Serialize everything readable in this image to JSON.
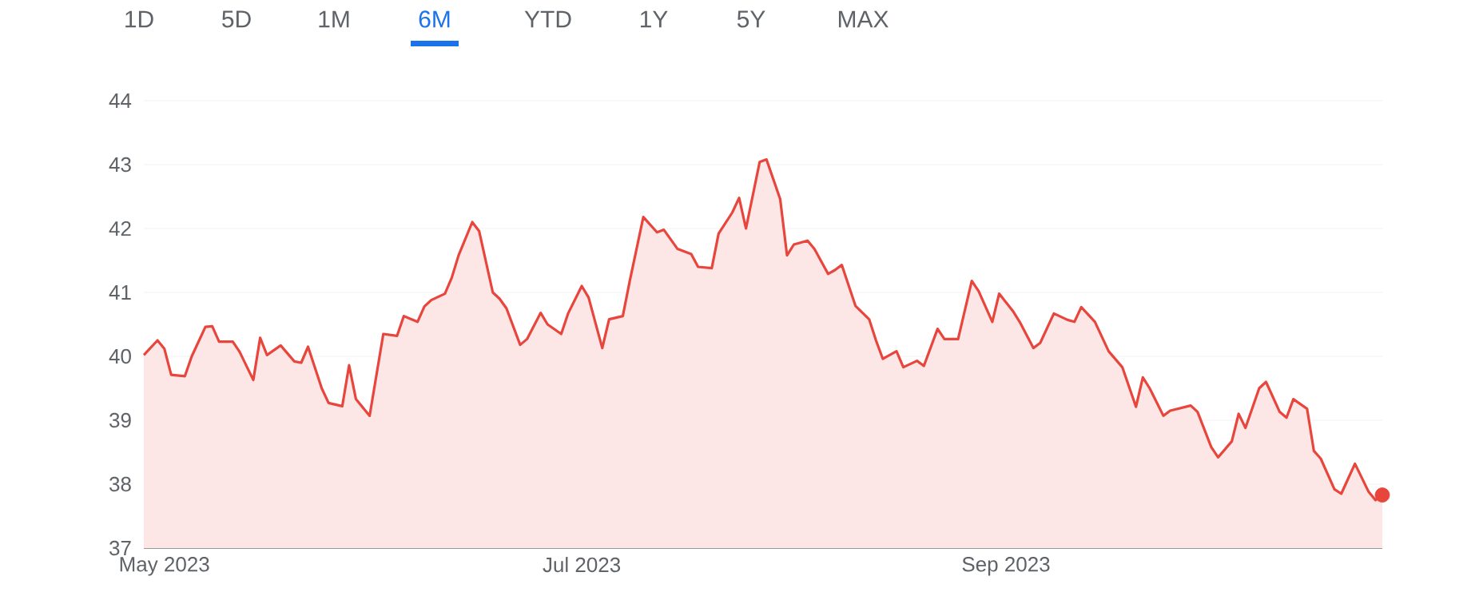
{
  "chart_data": {
    "type": "area",
    "color": "#e8453c",
    "x": [
      "2023-04-28",
      "2023-04-30",
      "2023-05-01",
      "2023-05-02",
      "2023-05-04",
      "2023-05-05",
      "2023-05-07",
      "2023-05-08",
      "2023-05-09",
      "2023-05-11",
      "2023-05-12",
      "2023-05-14",
      "2023-05-15",
      "2023-05-16",
      "2023-05-18",
      "2023-05-20",
      "2023-05-21",
      "2023-05-22",
      "2023-05-24",
      "2023-05-25",
      "2023-05-27",
      "2023-05-28",
      "2023-05-29",
      "2023-05-31",
      "2023-06-02",
      "2023-06-04",
      "2023-06-05",
      "2023-06-07",
      "2023-06-08",
      "2023-06-09",
      "2023-06-11",
      "2023-06-12",
      "2023-06-13",
      "2023-06-15",
      "2023-06-16",
      "2023-06-18",
      "2023-06-19",
      "2023-06-20",
      "2023-06-22",
      "2023-06-23",
      "2023-06-25",
      "2023-06-26",
      "2023-06-28",
      "2023-06-29",
      "2023-07-01",
      "2023-07-02",
      "2023-07-04",
      "2023-07-05",
      "2023-07-07",
      "2023-07-08",
      "2023-07-10",
      "2023-07-12",
      "2023-07-13",
      "2023-07-15",
      "2023-07-17",
      "2023-07-18",
      "2023-07-20",
      "2023-07-21",
      "2023-07-23",
      "2023-07-24",
      "2023-07-25",
      "2023-07-27",
      "2023-07-28",
      "2023-07-30",
      "2023-07-31",
      "2023-08-01",
      "2023-08-03",
      "2023-08-04",
      "2023-08-06",
      "2023-08-07",
      "2023-08-08",
      "2023-08-10",
      "2023-08-12",
      "2023-08-13",
      "2023-08-14",
      "2023-08-16",
      "2023-08-17",
      "2023-08-19",
      "2023-08-20",
      "2023-08-22",
      "2023-08-23",
      "2023-08-25",
      "2023-08-27",
      "2023-08-28",
      "2023-08-30",
      "2023-08-31",
      "2023-09-02",
      "2023-09-03",
      "2023-09-05",
      "2023-09-06",
      "2023-09-08",
      "2023-09-10",
      "2023-09-11",
      "2023-09-12",
      "2023-09-14",
      "2023-09-16",
      "2023-09-18",
      "2023-09-20",
      "2023-09-21",
      "2023-09-22",
      "2023-09-24",
      "2023-09-25",
      "2023-09-28",
      "2023-09-29",
      "2023-10-01",
      "2023-10-02",
      "2023-10-04",
      "2023-10-05",
      "2023-10-06",
      "2023-10-08",
      "2023-10-09",
      "2023-10-11",
      "2023-10-12",
      "2023-10-13",
      "2023-10-15",
      "2023-10-16",
      "2023-10-17",
      "2023-10-19",
      "2023-10-20",
      "2023-10-22",
      "2023-10-24",
      "2023-10-25",
      "2023-10-26"
    ],
    "values": [
      40.02,
      40.25,
      40.12,
      39.71,
      39.69,
      40.0,
      40.46,
      40.47,
      40.23,
      40.23,
      40.07,
      39.63,
      40.29,
      40.02,
      40.17,
      39.92,
      39.9,
      40.15,
      39.5,
      39.27,
      39.22,
      39.86,
      39.33,
      39.07,
      40.35,
      40.32,
      40.63,
      40.54,
      40.78,
      40.88,
      40.98,
      41.23,
      41.58,
      42.1,
      41.96,
      41.0,
      40.9,
      40.75,
      40.18,
      40.27,
      40.68,
      40.5,
      40.35,
      40.67,
      41.1,
      40.92,
      40.13,
      40.58,
      40.63,
      41.17,
      42.18,
      41.94,
      41.98,
      41.68,
      41.6,
      41.4,
      41.38,
      41.92,
      42.25,
      42.48,
      42.0,
      43.04,
      43.08,
      42.46,
      41.58,
      41.75,
      41.81,
      41.68,
      41.29,
      41.35,
      41.43,
      40.79,
      40.58,
      40.25,
      39.96,
      40.08,
      39.83,
      39.93,
      39.85,
      40.43,
      40.27,
      40.27,
      41.18,
      41.02,
      40.54,
      40.98,
      40.71,
      40.54,
      40.13,
      40.21,
      40.67,
      40.57,
      40.54,
      40.77,
      40.54,
      40.08,
      39.83,
      39.21,
      39.67,
      39.5,
      39.07,
      39.15,
      39.23,
      39.13,
      38.58,
      38.42,
      38.67,
      39.1,
      38.88,
      39.5,
      39.6,
      39.13,
      39.04,
      39.33,
      39.18,
      38.52,
      38.4,
      37.92,
      37.85,
      38.32,
      37.88,
      37.75,
      37.83
    ],
    "xlim": [
      "2023-04-28",
      "2023-10-26"
    ],
    "xticks": [
      {
        "value": "2023-05-01",
        "label": "May 2023"
      },
      {
        "value": "2023-07-01",
        "label": "Jul 2023"
      },
      {
        "value": "2023-09-01",
        "label": "Sep 2023"
      }
    ],
    "ylim": [
      37,
      44
    ],
    "yticks": [
      37,
      38,
      39,
      40,
      41,
      42,
      43,
      44
    ],
    "grid": "y",
    "annotations": [
      "1D",
      "5D",
      "1M",
      "6M",
      "YTD",
      "1Y",
      "5Y",
      "MAX"
    ]
  }
}
